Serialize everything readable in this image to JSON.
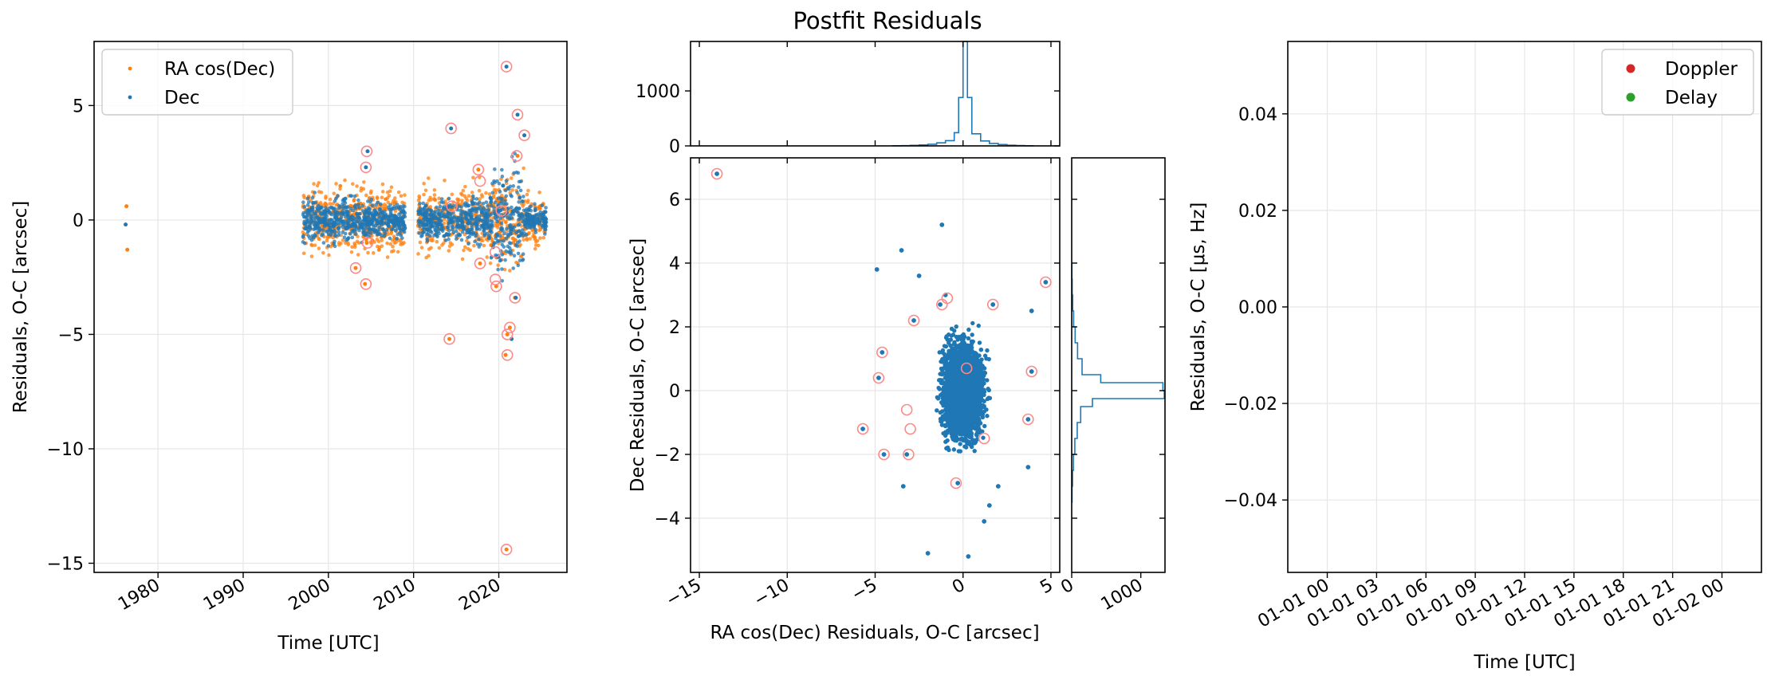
{
  "figure": {
    "suptitle": "Postfit Residuals"
  },
  "colors": {
    "ra": "#ff7f0e",
    "dec": "#1f77b4",
    "doppler": "#d62728",
    "delay": "#2ca02c",
    "outlier_ring": "#ff8888",
    "grid": "#e6e6e6"
  },
  "chart_data": [
    {
      "id": "time-series",
      "type": "scatter",
      "xlabel": "Time [UTC]",
      "ylabel": "Residuals, O-C [arcsec]",
      "xlim": [
        1972.5,
        2028
      ],
      "ylim": [
        -15.4,
        7.8
      ],
      "xticks": [
        "1980",
        "1990",
        "2000",
        "2010",
        "2020"
      ],
      "xtick_values": [
        1980,
        1990,
        2000,
        2010,
        2020
      ],
      "yticks": [
        "5",
        "0",
        "−5",
        "−10",
        "−15"
      ],
      "ytick_values": [
        5,
        0,
        -5,
        -10,
        -15
      ],
      "grid": true,
      "legend": {
        "position": "top-left",
        "entries": [
          "RA cos(Dec)",
          "Dec"
        ]
      },
      "series": [
        {
          "name": "RA cos(Dec)",
          "points": [
            [
              1976.3,
              0.6
            ],
            [
              1976.4,
              -1.3
            ],
            [
              2004.5,
              -1.0
            ],
            [
              2003.2,
              -2.1
            ],
            [
              2004.3,
              -2.8
            ],
            [
              2014.2,
              -5.2
            ],
            [
              2020.8,
              -5.9
            ],
            [
              2021.3,
              -4.7
            ],
            [
              2021.0,
              -5.0
            ],
            [
              2020.9,
              -14.4
            ],
            [
              2021.9,
              -3.4
            ],
            [
              2019.7,
              -2.9
            ],
            [
              2019.1,
              -1.1
            ],
            [
              2020.0,
              0.8
            ],
            [
              2017.8,
              -1.9
            ],
            [
              2017.6,
              2.2
            ],
            [
              2022.2,
              2.8
            ]
          ]
        },
        {
          "name": "Dec",
          "points": [
            [
              1976.2,
              -0.2
            ],
            [
              2004.6,
              3.0
            ],
            [
              2004.4,
              2.3
            ],
            [
              2014.4,
              4.0
            ],
            [
              2020.9,
              6.7
            ],
            [
              2022.2,
              4.6
            ],
            [
              2023.0,
              3.7
            ],
            [
              2021.5,
              -5.2
            ],
            [
              2022.0,
              -3.4
            ],
            [
              2020.5,
              1.5
            ]
          ]
        }
      ],
      "density_bands": [
        {
          "x": [
            1997.0,
            2001.0
          ],
          "ra": [
            -2.0,
            2.2
          ],
          "dec": [
            -1.6,
            1.6
          ]
        },
        {
          "x": [
            2001.0,
            2005.0
          ],
          "ra": [
            -2.3,
            2.0
          ],
          "dec": [
            -1.5,
            1.5
          ]
        },
        {
          "x": [
            2005.0,
            2009.0
          ],
          "ra": [
            -1.8,
            2.4
          ],
          "dec": [
            -1.2,
            1.6
          ]
        },
        {
          "x": [
            2010.5,
            2014.8
          ],
          "ra": [
            -1.8,
            2.0
          ],
          "dec": [
            -1.2,
            1.5
          ]
        },
        {
          "x": [
            2015.0,
            2019.0
          ],
          "ra": [
            -2.0,
            2.0
          ],
          "dec": [
            -1.5,
            1.8
          ]
        },
        {
          "x": [
            2019.0,
            2023.0
          ],
          "ra": [
            -3.0,
            3.0
          ],
          "dec": [
            -3.2,
            4.0
          ]
        },
        {
          "x": [
            2023.0,
            2025.6
          ],
          "ra": [
            -1.5,
            2.0
          ],
          "dec": [
            -1.0,
            1.0
          ]
        }
      ],
      "outliers": [
        [
          2004.5,
          3.0
        ],
        [
          2004.4,
          2.3
        ],
        [
          2003.2,
          -2.1
        ],
        [
          2004.4,
          -2.8
        ],
        [
          2004.6,
          -1.0
        ],
        [
          2014.4,
          4.0
        ],
        [
          2014.2,
          -5.2
        ],
        [
          2014.5,
          0.6
        ],
        [
          2017.6,
          2.2
        ],
        [
          2017.8,
          1.7
        ],
        [
          2017.8,
          -1.9
        ],
        [
          2019.7,
          -2.9
        ],
        [
          2019.6,
          -2.6
        ],
        [
          2019.6,
          -1.4
        ],
        [
          2020.9,
          6.7
        ],
        [
          2020.9,
          -14.4
        ],
        [
          2021.0,
          -5.0
        ],
        [
          2021.0,
          -5.9
        ],
        [
          2021.3,
          -4.7
        ],
        [
          2021.9,
          -3.4
        ],
        [
          2022.2,
          4.6
        ],
        [
          2022.1,
          2.8
        ],
        [
          2023.0,
          3.7
        ],
        [
          2020.3,
          0.4
        ]
      ]
    },
    {
      "id": "ra-dec-scatter",
      "type": "scatter",
      "xlabel": "RA cos(Dec) Residuals, O-C [arcsec]",
      "ylabel": "Dec Residuals, O-C [arcsec]",
      "xlim": [
        -15.5,
        5.5
      ],
      "ylim": [
        -5.7,
        7.3
      ],
      "xticks": [
        "−15",
        "−10",
        "−5",
        "0",
        "5"
      ],
      "xtick_values": [
        -15,
        -10,
        -5,
        0,
        5
      ],
      "yticks": [
        "6",
        "4",
        "2",
        "0",
        "−2",
        "−4"
      ],
      "ytick_values": [
        6,
        4,
        2,
        0,
        -2,
        -4
      ],
      "grid": true,
      "cluster": {
        "center": [
          0,
          0
        ],
        "sigma": [
          1.0,
          1.2
        ]
      },
      "points": [
        [
          -14.0,
          6.8
        ],
        [
          -4.9,
          3.8
        ],
        [
          -1.2,
          5.2
        ],
        [
          -3.5,
          4.4
        ],
        [
          -2.5,
          3.6
        ],
        [
          1.7,
          2.7
        ],
        [
          3.9,
          2.5
        ],
        [
          4.7,
          3.4
        ],
        [
          3.9,
          0.6
        ],
        [
          3.7,
          -0.9
        ],
        [
          3.7,
          -2.4
        ],
        [
          -4.6,
          1.2
        ],
        [
          -4.8,
          0.4
        ],
        [
          -5.7,
          -1.2
        ],
        [
          -4.5,
          -2.0
        ],
        [
          -3.4,
          -3.0
        ],
        [
          -2.0,
          -5.1
        ],
        [
          0.3,
          -5.2
        ],
        [
          1.2,
          -4.1
        ],
        [
          2.0,
          -3.0
        ],
        [
          -3.2,
          -2.0
        ],
        [
          -2.8,
          2.2
        ],
        [
          -1.3,
          2.7
        ],
        [
          -1.0,
          3.0
        ],
        [
          1.5,
          -3.6
        ],
        [
          -0.3,
          -2.9
        ]
      ],
      "outliers": [
        [
          -14.0,
          6.8
        ],
        [
          -4.6,
          1.2
        ],
        [
          -4.8,
          0.4
        ],
        [
          -5.7,
          -1.2
        ],
        [
          -4.5,
          -2.0
        ],
        [
          -3.1,
          -2.0
        ],
        [
          -3.2,
          -0.6
        ],
        [
          -3.0,
          -1.2
        ],
        [
          -2.8,
          2.2
        ],
        [
          -1.2,
          2.7
        ],
        [
          -0.9,
          2.9
        ],
        [
          1.7,
          2.7
        ],
        [
          4.7,
          3.4
        ],
        [
          3.9,
          0.6
        ],
        [
          3.7,
          -0.9
        ],
        [
          0.2,
          0.7
        ],
        [
          1.2,
          -1.5
        ],
        [
          -0.4,
          -2.9
        ]
      ]
    },
    {
      "id": "ra-histogram",
      "type": "histogram",
      "orientation": "vertical",
      "xlim": [
        -15.5,
        5.5
      ],
      "ylim": [
        0,
        1900
      ],
      "yticks": [
        "0",
        "1000"
      ],
      "ytick_values": [
        0,
        1000
      ],
      "bins": [
        [
          -4,
          3
        ],
        [
          -3.5,
          5
        ],
        [
          -3,
          10
        ],
        [
          -2.5,
          18
        ],
        [
          -2,
          30
        ],
        [
          -1.5,
          55
        ],
        [
          -1,
          95
        ],
        [
          -0.5,
          240
        ],
        [
          -0.25,
          880
        ],
        [
          0,
          1900
        ],
        [
          0.25,
          880
        ],
        [
          0.5,
          220
        ],
        [
          1,
          90
        ],
        [
          1.5,
          45
        ],
        [
          2,
          25
        ],
        [
          2.5,
          12
        ],
        [
          3,
          6
        ],
        [
          3.5,
          3
        ],
        [
          4,
          0
        ]
      ]
    },
    {
      "id": "dec-histogram",
      "type": "histogram",
      "orientation": "horizontal",
      "ylim": [
        -5.7,
        7.3
      ],
      "xlim": [
        0,
        1350
      ],
      "xticks": [
        "0",
        "1000"
      ],
      "xtick_values": [
        0,
        1000
      ],
      "bins": [
        [
          -3.5,
          5
        ],
        [
          -3,
          12
        ],
        [
          -2.5,
          25
        ],
        [
          -2,
          45
        ],
        [
          -1.5,
          80
        ],
        [
          -1,
          130
        ],
        [
          -0.5,
          300
        ],
        [
          -0.25,
          1340
        ],
        [
          0,
          1320
        ],
        [
          0.25,
          420
        ],
        [
          0.5,
          150
        ],
        [
          1,
          85
        ],
        [
          1.5,
          50
        ],
        [
          2,
          28
        ],
        [
          2.5,
          15
        ],
        [
          3,
          7
        ],
        [
          3.5,
          3
        ],
        [
          4,
          0
        ]
      ]
    },
    {
      "id": "radar",
      "type": "scatter",
      "xlabel": "Time [UTC]",
      "ylabel": "Residuals, O-C [μs, Hz]",
      "xlim": [
        -0.1,
        1.1
      ],
      "ylim": [
        -0.055,
        0.055
      ],
      "xticks": [
        "01-01 00",
        "01-01 03",
        "01-01 06",
        "01-01 09",
        "01-01 12",
        "01-01 15",
        "01-01 18",
        "01-01 21",
        "01-02 00"
      ],
      "xtick_values": [
        0,
        0.125,
        0.25,
        0.375,
        0.5,
        0.625,
        0.75,
        0.875,
        1
      ],
      "yticks": [
        "0.04",
        "0.02",
        "0.00",
        "−0.02",
        "−0.04"
      ],
      "ytick_values": [
        0.04,
        0.02,
        0,
        -0.02,
        -0.04
      ],
      "grid": true,
      "legend": {
        "position": "top-right",
        "entries": [
          "Doppler",
          "Delay"
        ]
      },
      "series": [
        {
          "name": "Doppler",
          "values": []
        },
        {
          "name": "Delay",
          "values": []
        }
      ]
    }
  ]
}
